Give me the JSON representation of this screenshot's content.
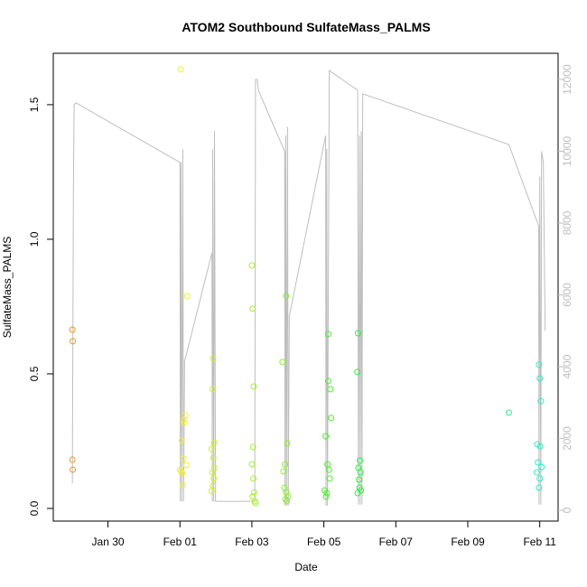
{
  "chart_data": {
    "type": "scatter",
    "title": "ATOM2 Southbound SulfateMass_PALMS",
    "xlabel": "Date",
    "ylabel": "SulfateMass_PALMS",
    "xlim": [
      28.48,
      42.51
    ],
    "xticks": [
      {
        "value": 30,
        "label": "Jan 30"
      },
      {
        "value": 32,
        "label": "Feb 01"
      },
      {
        "value": 34,
        "label": "Feb 03"
      },
      {
        "value": 36,
        "label": "Feb 05"
      },
      {
        "value": 38,
        "label": "Feb 07"
      },
      {
        "value": 40,
        "label": "Feb 09"
      },
      {
        "value": 42,
        "label": "Feb 11"
      }
    ],
    "ylim": [
      -0.047,
      1.691
    ],
    "yticks": [
      {
        "value": 0,
        "label": "0.0"
      },
      0.5,
      {
        "value": 1,
        "label": "1.0"
      },
      1.5
    ],
    "y2lim": [
      -300,
      12730
    ],
    "y2ticks": [
      0,
      2000,
      4000,
      6000,
      8000,
      10000,
      12000
    ],
    "y2color": "#bebebe",
    "series": [
      {
        "type": "line",
        "axis": "y2",
        "color": "#bebebe",
        "x": [
          29.01,
          29.04,
          29.06,
          29.11,
          32.0,
          32.01,
          32.03,
          32.05,
          32.08,
          32.1,
          32.13,
          32.89,
          32.9,
          32.91,
          32.94,
          32.96,
          32.99,
          34.08,
          34.1,
          34.15,
          34.18,
          34.91,
          34.92,
          34.94,
          34.96,
          34.99,
          35.01,
          35.04,
          36.05,
          36.06,
          36.08,
          36.1,
          36.15,
          36.94,
          36.96,
          36.99,
          37.01,
          37.04,
          37.06,
          37.08,
          41.14,
          41.97,
          41.98,
          42.0,
          42.03,
          42.05,
          42.1,
          42.15
        ],
        "values": [
          750,
          9010,
          11300,
          11350,
          9690,
          250,
          9690,
          250,
          10060,
          250,
          4150,
          7170,
          250,
          10060,
          250,
          10570,
          250,
          250,
          12000,
          12000,
          11700,
          10000,
          130,
          10440,
          130,
          10690,
          130,
          5410,
          10440,
          130,
          10060,
          130,
          12250,
          11700,
          160,
          10440,
          160,
          10560,
          160,
          11600,
          10190,
          7920,
          160,
          9300,
          160,
          10000,
          9700,
          5000
        ]
      },
      {
        "type": "scatter",
        "x": [
          29.01,
          29.02,
          29.01,
          29.02,
          32.02,
          32.2,
          32.15,
          32.1,
          32.12,
          32.05,
          32.1,
          32.18,
          32.0,
          32.03,
          32.06,
          32.08,
          32.92,
          32.9,
          32.95,
          32.88,
          32.93,
          32.96,
          32.9,
          32.94,
          32.92,
          32.88,
          34.0,
          34.02,
          34.05,
          34.03,
          34.0,
          34.04,
          34.06,
          34.02,
          34.08,
          34.1,
          34.95,
          34.85,
          34.98,
          34.92,
          34.88,
          34.9,
          34.95,
          35.0,
          34.93,
          34.97,
          36.12,
          36.12,
          36.18,
          36.2,
          36.05,
          36.1,
          36.14,
          36.16,
          36.02,
          36.08,
          36.06,
          36.95,
          36.93,
          37.0,
          36.96,
          37.02,
          36.98,
          36.99,
          37.03,
          36.94,
          41.14,
          41.98,
          42.0,
          42.03,
          41.93,
          42.01,
          41.95,
          42.05,
          41.92,
          42.0,
          41.98
        ],
        "values": [
          0.664,
          0.621,
          0.181,
          0.144,
          1.631,
          0.789,
          0.346,
          0.329,
          0.319,
          0.252,
          0.185,
          0.161,
          0.144,
          0.138,
          0.131,
          0.087,
          0.557,
          0.443,
          0.245,
          0.221,
          0.188,
          0.151,
          0.134,
          0.111,
          0.084,
          0.064,
          0.903,
          0.742,
          0.453,
          0.228,
          0.164,
          0.111,
          0.06,
          0.044,
          0.027,
          0.02,
          0.789,
          0.544,
          0.242,
          0.164,
          0.138,
          0.077,
          0.06,
          0.044,
          0.034,
          0.027,
          0.648,
          0.473,
          0.443,
          0.336,
          0.268,
          0.164,
          0.144,
          0.111,
          0.067,
          0.057,
          0.044,
          0.651,
          0.507,
          0.178,
          0.151,
          0.134,
          0.107,
          0.077,
          0.067,
          0.057,
          0.356,
          0.534,
          0.483,
          0.399,
          0.238,
          0.231,
          0.171,
          0.154,
          0.134,
          0.111,
          0.077
        ],
        "colors": [
          "#e8962a",
          "#e8962a",
          "#e8962a",
          "#e8962a",
          "#f0f02a",
          "#f0f02a",
          "#f0f02a",
          "#f0f02a",
          "#f0f02a",
          "#f0f02a",
          "#f0f02a",
          "#f0f02a",
          "#f0f02a",
          "#f0f02a",
          "#f0f02a",
          "#f0f02a",
          "#d4f02a",
          "#d4f02a",
          "#d4f02a",
          "#d4f02a",
          "#d4f02a",
          "#d4f02a",
          "#d4f02a",
          "#d4f02a",
          "#d4f02a",
          "#d4f02a",
          "#a8f02a",
          "#a8f02a",
          "#a8f02a",
          "#a8f02a",
          "#a8f02a",
          "#a8f02a",
          "#a8f02a",
          "#a8f02a",
          "#a8f02a",
          "#a8f02a",
          "#8cf02a",
          "#8cf02a",
          "#8cf02a",
          "#8cf02a",
          "#8cf02a",
          "#8cf02a",
          "#8cf02a",
          "#8cf02a",
          "#8cf02a",
          "#8cf02a",
          "#4cf02a",
          "#4cf02a",
          "#4cf02a",
          "#4cf02a",
          "#4cf02a",
          "#4cf02a",
          "#4cf02a",
          "#4cf02a",
          "#4cf02a",
          "#4cf02a",
          "#4cf02a",
          "#2af040",
          "#2af040",
          "#2af040",
          "#2af040",
          "#2af040",
          "#2af040",
          "#2af040",
          "#2af040",
          "#2af040",
          "#2af0a0",
          "#2af0c8",
          "#2af0c8",
          "#2af0c8",
          "#2af0c8",
          "#2af0c8",
          "#2af0c8",
          "#2af0c8",
          "#2af0c8",
          "#2af0c8",
          "#2af0c8"
        ]
      }
    ]
  }
}
